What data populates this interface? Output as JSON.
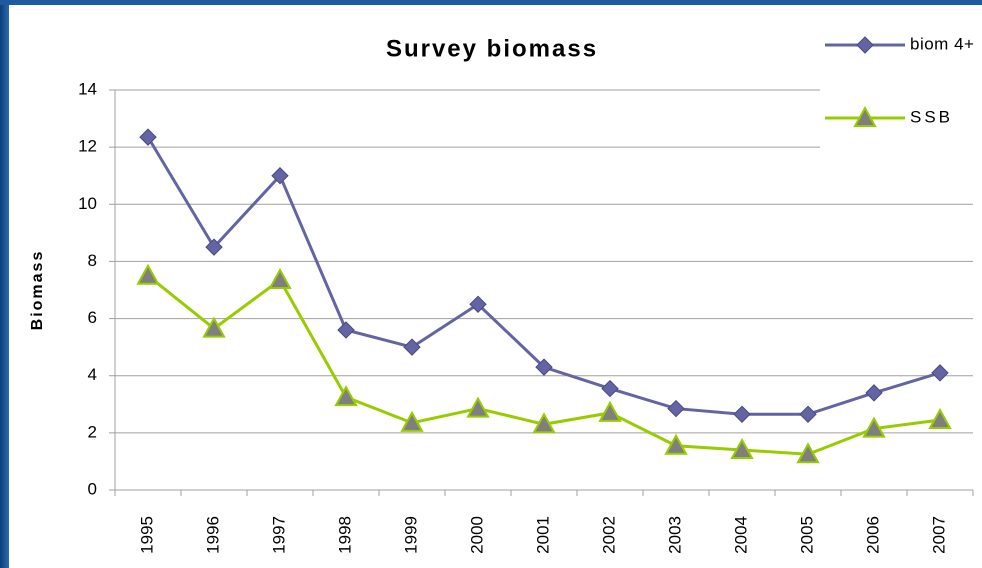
{
  "chart_data": {
    "type": "line",
    "title": "Survey biomass",
    "y_label": "Biomass",
    "categories": [
      "1995",
      "1996",
      "1997",
      "1998",
      "1999",
      "2000",
      "2001",
      "2002",
      "2003",
      "2004",
      "2005",
      "2006",
      "2007"
    ],
    "series": [
      {
        "name": "biom 4+",
        "color": "#6464a4",
        "marker": "diamond",
        "values": [
          12.35,
          8.5,
          11.0,
          5.6,
          5.0,
          6.5,
          4.3,
          3.55,
          2.85,
          2.65,
          2.65,
          3.4,
          4.1
        ]
      },
      {
        "name": "SSB",
        "color": "#99cc00",
        "marker": "triangle",
        "values": [
          7.5,
          5.65,
          7.35,
          3.25,
          2.35,
          2.85,
          2.3,
          2.7,
          1.55,
          1.4,
          1.25,
          2.15,
          2.45
        ]
      }
    ],
    "ylim": [
      0,
      14
    ],
    "yticks": [
      0,
      2,
      4,
      6,
      8,
      10,
      12,
      14
    ],
    "grid": true,
    "legend": "top-right"
  }
}
